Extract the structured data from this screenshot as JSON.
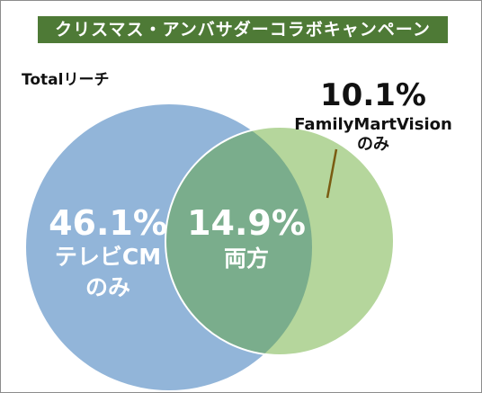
{
  "title": "クリスマス・アンバサダーコラボキャンペーン",
  "reach_label": "Totalリーチ",
  "chart_data": {
    "type": "venn",
    "sets": [
      {
        "label_lines": [
          "テレビCM",
          "のみ"
        ],
        "value": 46.1,
        "value_text": "46.1%",
        "color": "#92b5d9"
      },
      {
        "label_lines": [
          "FamilyMartVision",
          "のみ"
        ],
        "value": 10.1,
        "value_text": "10.1%",
        "color": "#b5d69c"
      }
    ],
    "intersection": {
      "label": "両方",
      "value": 14.9,
      "value_text": "14.9%",
      "color": "#7aad8c"
    }
  }
}
